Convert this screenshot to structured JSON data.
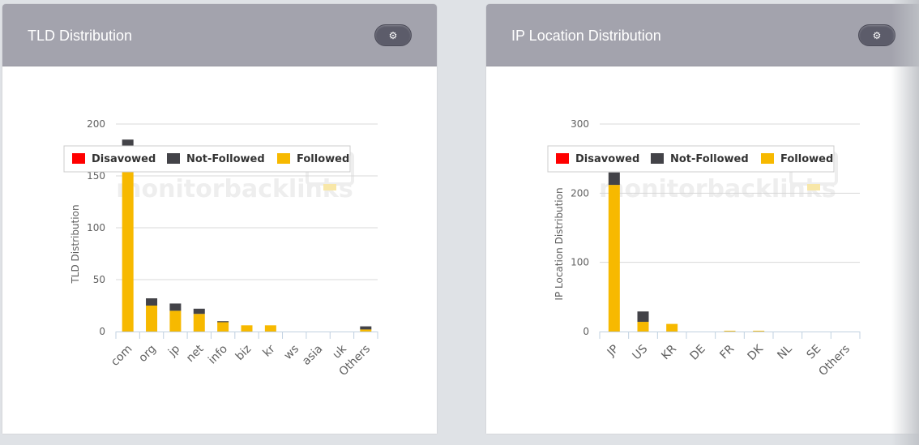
{
  "panels": [
    {
      "title": "TLD Distribution",
      "gear_icon": "gear-icon",
      "watermark": "monitorbacklinks",
      "legend": [
        {
          "name": "Disavowed",
          "color": "#ff0000"
        },
        {
          "name": "Not-Followed",
          "color": "#434348"
        },
        {
          "name": "Followed",
          "color": "#f7b900"
        }
      ]
    },
    {
      "title": "IP Location Distribution",
      "gear_icon": "gear-icon",
      "watermark": "monitorbacklinks",
      "legend": [
        {
          "name": "Disavowed",
          "color": "#ff0000"
        },
        {
          "name": "Not-Followed",
          "color": "#434348"
        },
        {
          "name": "Followed",
          "color": "#f7b900"
        }
      ]
    }
  ],
  "chart_data": [
    {
      "type": "bar",
      "stacked": true,
      "title": "",
      "xlabel": "",
      "ylabel": "TLD Distribution",
      "ylim": [
        0,
        200
      ],
      "yticks": [
        0,
        50,
        100,
        150,
        200
      ],
      "categories": [
        "com",
        "org",
        "jp",
        "net",
        "info",
        "biz",
        "kr",
        "ws",
        "asia",
        "uk",
        "Others"
      ],
      "series": [
        {
          "name": "Disavowed",
          "color": "#ff0000",
          "values": [
            0,
            0,
            0,
            0,
            0,
            0,
            0,
            0,
            0,
            0,
            0
          ]
        },
        {
          "name": "Not-Followed",
          "color": "#434348",
          "values": [
            6,
            7,
            7,
            5,
            1,
            0,
            0,
            0,
            0,
            0,
            3
          ]
        },
        {
          "name": "Followed",
          "color": "#f7b900",
          "values": [
            179,
            25,
            20,
            17,
            9,
            6,
            6,
            0,
            0,
            0,
            2
          ]
        }
      ],
      "legend_position": "top"
    },
    {
      "type": "bar",
      "stacked": true,
      "title": "",
      "xlabel": "",
      "ylabel": "IP Location Distribution",
      "ylim": [
        0,
        300
      ],
      "yticks": [
        0,
        100,
        200,
        300
      ],
      "categories": [
        "JP",
        "US",
        "KR",
        "DE",
        "FR",
        "DK",
        "NL",
        "SE",
        "Others"
      ],
      "series": [
        {
          "name": "Disavowed",
          "color": "#ff0000",
          "values": [
            0,
            0,
            0,
            0,
            0,
            0,
            0,
            0,
            0
          ]
        },
        {
          "name": "Not-Followed",
          "color": "#434348",
          "values": [
            18,
            15,
            0,
            0,
            0,
            0,
            0,
            0,
            0
          ]
        },
        {
          "name": "Followed",
          "color": "#f7b900",
          "values": [
            212,
            14,
            11,
            0,
            1,
            1,
            0,
            0,
            0
          ]
        }
      ],
      "legend_position": "top"
    }
  ]
}
